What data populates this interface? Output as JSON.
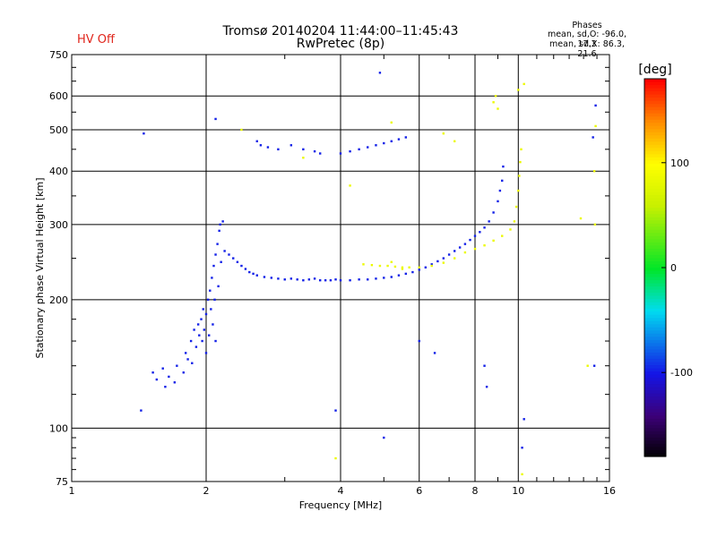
{
  "status": {
    "hv": "HV Off"
  },
  "header": {
    "title": "Tromsø 20140204 11:44:00–11:45:43",
    "subtitle": "RwPretec (8p)"
  },
  "phase_box": {
    "title": "Phases",
    "line_o": "mean, sd,O: -96.0, 17.3",
    "line_x": "mean, sd,X:  86.3, 21.6"
  },
  "colors": {
    "blue_trace": "#1a1ae6",
    "hv_text": "#e0251b",
    "axes": "#000000"
  },
  "chart_data": {
    "type": "scatter",
    "title": "Tromsø 20140204 11:44:00–11:45:43",
    "subtitle": "RwPretec (8p)",
    "xlabel": "Frequency [MHz]",
    "ylabel": "Stationary phase Virtual Height [km]",
    "x_scale": "log",
    "y_scale": "log",
    "xlim": [
      1,
      16
    ],
    "ylim": [
      75,
      750
    ],
    "xticks": [
      1,
      2,
      4,
      6,
      8,
      10,
      16
    ],
    "yticks": [
      75,
      100,
      200,
      300,
      400,
      500,
      600,
      750
    ],
    "grid": true,
    "colorbar": {
      "label": "[deg]",
      "range": [
        -180,
        180
      ],
      "ticks": [
        100,
        0,
        -100
      ]
    },
    "series": [
      {
        "name": "O",
        "color_phase": -96,
        "points": [
          [
            1.45,
            490
          ],
          [
            1.43,
            110
          ],
          [
            1.52,
            135
          ],
          [
            1.55,
            130
          ],
          [
            1.6,
            138
          ],
          [
            1.62,
            125
          ],
          [
            1.65,
            132
          ],
          [
            1.7,
            128
          ],
          [
            1.72,
            140
          ],
          [
            1.78,
            135
          ],
          [
            1.8,
            150
          ],
          [
            1.82,
            145
          ],
          [
            1.85,
            160
          ],
          [
            1.86,
            142
          ],
          [
            1.88,
            170
          ],
          [
            1.9,
            155
          ],
          [
            1.92,
            175
          ],
          [
            1.93,
            165
          ],
          [
            1.95,
            180
          ],
          [
            1.96,
            160
          ],
          [
            1.97,
            190
          ],
          [
            1.98,
            170
          ],
          [
            2.0,
            185
          ],
          [
            2.0,
            150
          ],
          [
            2.02,
            200
          ],
          [
            2.03,
            165
          ],
          [
            2.04,
            210
          ],
          [
            2.05,
            190
          ],
          [
            2.06,
            225
          ],
          [
            2.07,
            175
          ],
          [
            2.08,
            240
          ],
          [
            2.09,
            200
          ],
          [
            2.1,
            255
          ],
          [
            2.1,
            160
          ],
          [
            2.12,
            270
          ],
          [
            2.13,
            215
          ],
          [
            2.14,
            290
          ],
          [
            2.15,
            300
          ],
          [
            2.16,
            245
          ],
          [
            2.18,
            305
          ],
          [
            2.2,
            260
          ],
          [
            2.25,
            255
          ],
          [
            2.3,
            250
          ],
          [
            2.35,
            245
          ],
          [
            2.4,
            240
          ],
          [
            2.45,
            236
          ],
          [
            2.5,
            232
          ],
          [
            2.55,
            230
          ],
          [
            2.6,
            228
          ],
          [
            2.7,
            226
          ],
          [
            2.8,
            225
          ],
          [
            2.9,
            224
          ],
          [
            3.0,
            223
          ],
          [
            3.1,
            224
          ],
          [
            3.2,
            223
          ],
          [
            3.3,
            222
          ],
          [
            3.4,
            223
          ],
          [
            3.5,
            224
          ],
          [
            3.6,
            222
          ],
          [
            3.7,
            222
          ],
          [
            3.8,
            222
          ],
          [
            3.9,
            223
          ],
          [
            4.0,
            222
          ],
          [
            4.2,
            222
          ],
          [
            4.4,
            223
          ],
          [
            4.6,
            223
          ],
          [
            4.8,
            224
          ],
          [
            5.0,
            225
          ],
          [
            5.2,
            226
          ],
          [
            5.4,
            228
          ],
          [
            5.6,
            230
          ],
          [
            5.8,
            232
          ],
          [
            6.0,
            235
          ],
          [
            6.2,
            238
          ],
          [
            6.4,
            242
          ],
          [
            6.6,
            246
          ],
          [
            6.8,
            250
          ],
          [
            7.0,
            255
          ],
          [
            7.2,
            260
          ],
          [
            7.4,
            265
          ],
          [
            7.6,
            270
          ],
          [
            7.8,
            276
          ],
          [
            8.0,
            282
          ],
          [
            8.2,
            288
          ],
          [
            8.4,
            295
          ],
          [
            8.6,
            305
          ],
          [
            8.8,
            320
          ],
          [
            9.0,
            340
          ],
          [
            9.1,
            360
          ],
          [
            9.2,
            380
          ],
          [
            9.25,
            410
          ],
          [
            2.6,
            470
          ],
          [
            2.65,
            460
          ],
          [
            2.75,
            455
          ],
          [
            2.9,
            450
          ],
          [
            3.1,
            460
          ],
          [
            3.3,
            450
          ],
          [
            3.5,
            445
          ],
          [
            3.6,
            440
          ],
          [
            4.0,
            440
          ],
          [
            4.2,
            445
          ],
          [
            4.4,
            450
          ],
          [
            4.6,
            455
          ],
          [
            4.8,
            460
          ],
          [
            5.0,
            465
          ],
          [
            5.2,
            470
          ],
          [
            5.4,
            475
          ],
          [
            5.6,
            480
          ],
          [
            2.1,
            530
          ],
          [
            4.9,
            680
          ],
          [
            3.9,
            110
          ],
          [
            6.0,
            160
          ],
          [
            6.5,
            150
          ],
          [
            5.0,
            95
          ],
          [
            8.4,
            140
          ],
          [
            8.5,
            125
          ],
          [
            10.3,
            105
          ],
          [
            10.2,
            90
          ],
          [
            14.8,
            140
          ],
          [
            14.9,
            570
          ],
          [
            14.7,
            480
          ]
        ]
      },
      {
        "name": "X",
        "color_phase": 86,
        "points": [
          [
            4.5,
            242
          ],
          [
            4.7,
            241
          ],
          [
            4.9,
            240
          ],
          [
            5.1,
            240
          ],
          [
            5.3,
            239
          ],
          [
            5.5,
            238
          ],
          [
            5.7,
            238
          ],
          [
            6.0,
            238
          ],
          [
            6.4,
            240
          ],
          [
            6.8,
            244
          ],
          [
            7.2,
            250
          ],
          [
            7.6,
            258
          ],
          [
            8.0,
            263
          ],
          [
            8.4,
            268
          ],
          [
            8.8,
            275
          ],
          [
            9.2,
            282
          ],
          [
            9.6,
            292
          ],
          [
            9.8,
            305
          ],
          [
            9.9,
            330
          ],
          [
            10.0,
            360
          ],
          [
            10.05,
            390
          ],
          [
            10.1,
            420
          ],
          [
            10.15,
            450
          ],
          [
            10.0,
            620
          ],
          [
            10.3,
            640
          ],
          [
            9.0,
            560
          ],
          [
            8.8,
            580
          ],
          [
            8.9,
            600
          ],
          [
            4.2,
            370
          ],
          [
            3.9,
            85
          ],
          [
            5.2,
            520
          ],
          [
            13.8,
            310
          ],
          [
            14.3,
            140
          ],
          [
            14.9,
            510
          ],
          [
            14.8,
            400
          ],
          [
            14.85,
            300
          ],
          [
            10.2,
            78
          ],
          [
            2.4,
            500
          ],
          [
            3.3,
            430
          ],
          [
            5.2,
            245
          ],
          [
            5.5,
            236
          ],
          [
            6.8,
            490
          ],
          [
            7.2,
            470
          ]
        ]
      }
    ]
  }
}
